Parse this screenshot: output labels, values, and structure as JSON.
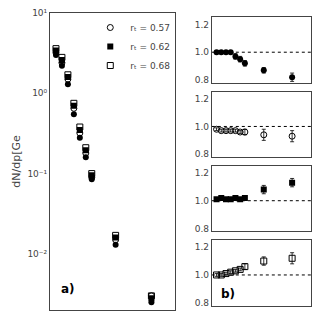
{
  "chart_data": [
    {
      "type": "scatter",
      "ylabel": "dN/dp[Ge",
      "annotation": "a)",
      "log": "y",
      "grid": false,
      "legend": "upper right",
      "tick_labels": "y",
      "xlim": [
        1.5,
        12
      ],
      "ylim": [
        0.002,
        10
      ],
      "yticks": [
        {
          "value": 0.01,
          "label": "10⁻²"
        },
        {
          "value": 0.1,
          "label": "10⁻¹"
        },
        {
          "value": 1,
          "label": "10⁰"
        },
        {
          "value": 10,
          "label": "10¹"
        }
      ],
      "x": [
        2.0,
        2.5,
        3.0,
        3.5,
        4.0,
        4.5,
        5.0,
        7.0,
        10.0
      ],
      "series": [
        {
          "name": "rₜ = 0.68",
          "marker": "square-open",
          "color": "black",
          "values": [
            3.6,
            2.8,
            1.7,
            0.75,
            0.38,
            0.21,
            0.1,
            0.017,
            0.003
          ]
        },
        {
          "name": "rₜ = 0.62",
          "marker": "square",
          "color": "black",
          "values": [
            3.4,
            2.6,
            1.6,
            0.7,
            0.35,
            0.195,
            0.095,
            0.016,
            0.0028
          ]
        },
        {
          "name": "rₜ = 0.57",
          "marker": "circle-open",
          "color": "black",
          "values": [
            3.2,
            2.4,
            1.5,
            0.65,
            0.32,
            0.18,
            0.09,
            0.015,
            0.003
          ]
        },
        {
          "marker": "circle",
          "color": "black",
          "values": [
            3.0,
            2.2,
            1.3,
            0.55,
            0.28,
            0.16,
            0.085,
            0.013,
            0.0025
          ]
        }
      ]
    },
    {
      "type": "scatter",
      "grid": false,
      "tick_labels": "y",
      "xlim": [
        1.5,
        12
      ],
      "ylim": [
        0.78,
        1.25
      ],
      "yticks": [
        0.8,
        {
          "value": 1,
          "label": "1.0"
        },
        1.2
      ],
      "hline": 1,
      "x": [
        2.0,
        2.5,
        3.0,
        3.5,
        4.0,
        4.5,
        5.0,
        7.0,
        10.0
      ],
      "series": [
        {
          "marker": "circle",
          "color": "black",
          "values": [
            1.0,
            1.0,
            1.0,
            1.0,
            0.97,
            0.95,
            0.92,
            0.87,
            0.82
          ],
          "errors": [
            0.01,
            0.01,
            0.01,
            0.01,
            0.02,
            0.02,
            0.02,
            0.02,
            0.03
          ]
        }
      ]
    },
    {
      "type": "scatter",
      "grid": false,
      "tick_labels": "y",
      "xlim": [
        1.5,
        12
      ],
      "ylim": [
        0.78,
        1.25
      ],
      "yticks": [
        0.8,
        {
          "value": 1,
          "label": "1.0"
        },
        1.2
      ],
      "hline": 1,
      "x": [
        2.0,
        2.5,
        3.0,
        3.5,
        4.0,
        4.5,
        5.0,
        7.0,
        10.0
      ],
      "series": [
        {
          "marker": "circle-open",
          "color": "black",
          "values": [
            0.98,
            0.97,
            0.97,
            0.97,
            0.97,
            0.96,
            0.96,
            0.94,
            0.93
          ],
          "errors": [
            0.01,
            0.01,
            0.01,
            0.01,
            0.01,
            0.01,
            0.02,
            0.04,
            0.04
          ]
        }
      ]
    },
    {
      "type": "scatter",
      "grid": false,
      "tick_labels": "y",
      "xlim": [
        1.5,
        12
      ],
      "ylim": [
        0.78,
        1.25
      ],
      "yticks": [
        0.8,
        {
          "value": 1,
          "label": "1.0"
        },
        1.2
      ],
      "hline": 1,
      "x": [
        2.0,
        2.5,
        3.0,
        3.5,
        4.0,
        4.5,
        5.0,
        7.0,
        10.0
      ],
      "series": [
        {
          "marker": "square",
          "color": "black",
          "values": [
            1.01,
            1.02,
            1.01,
            1.01,
            1.02,
            1.01,
            1.02,
            1.08,
            1.13
          ],
          "errors": [
            0.01,
            0.01,
            0.01,
            0.01,
            0.01,
            0.01,
            0.01,
            0.03,
            0.03
          ]
        }
      ]
    },
    {
      "type": "scatter",
      "annotation": "b)",
      "grid": false,
      "tick_labels": "y",
      "xlim": [
        1.5,
        12
      ],
      "ylim": [
        0.78,
        1.25
      ],
      "yticks": [
        0.8,
        {
          "value": 1,
          "label": "1.0"
        },
        1.2
      ],
      "hline": 1,
      "x": [
        2.0,
        2.5,
        3.0,
        3.5,
        4.0,
        4.5,
        5.0,
        7.0,
        10.0
      ],
      "series": [
        {
          "marker": "square-open",
          "color": "black",
          "values": [
            1.0,
            1.0,
            1.01,
            1.02,
            1.03,
            1.04,
            1.06,
            1.1,
            1.12
          ],
          "errors": [
            0.01,
            0.01,
            0.01,
            0.01,
            0.01,
            0.01,
            0.02,
            0.03,
            0.04
          ]
        }
      ]
    }
  ]
}
